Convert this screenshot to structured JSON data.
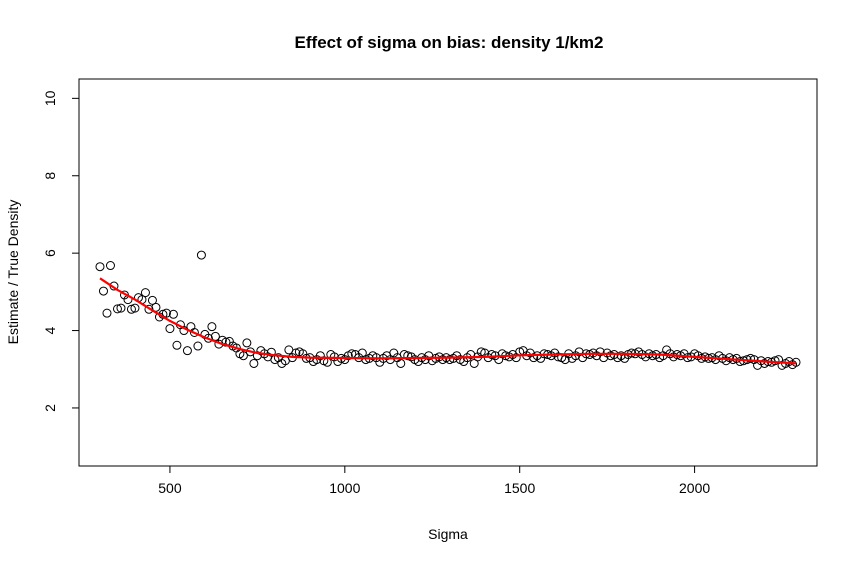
{
  "chart_data": {
    "type": "scatter",
    "title": "Effect of sigma on bias: density 1/km2",
    "xlabel": "Sigma",
    "ylabel": "Estimate / True Density",
    "xlim": [
      240,
      2350
    ],
    "ylim": [
      0.5,
      10.5
    ],
    "x_ticks": [
      500,
      1000,
      1500,
      2000
    ],
    "x_tick_labels": [
      "500",
      "1000",
      "1500",
      "2000"
    ],
    "y_ticks": [
      2,
      4,
      6,
      8,
      10
    ],
    "y_tick_labels": [
      "2",
      "4",
      "6",
      "8",
      "10"
    ],
    "grid": false,
    "legend": null,
    "colors": {
      "points": "#000000",
      "trend": "#ff0000"
    },
    "series": [
      {
        "kind": "points",
        "x": [
          300,
          310,
          320,
          330,
          340,
          350,
          360,
          370,
          380,
          390,
          400,
          410,
          420,
          430,
          440,
          450,
          460,
          470,
          480,
          490,
          500,
          510,
          520,
          530,
          540,
          550,
          560,
          570,
          580,
          590,
          600,
          610,
          620,
          630,
          640,
          650,
          660,
          670,
          680,
          690,
          700,
          710,
          720,
          730,
          740,
          750,
          760,
          770,
          780,
          790,
          800,
          810,
          820,
          830,
          840,
          850,
          860,
          870,
          880,
          890,
          900,
          910,
          920,
          930,
          940,
          950,
          960,
          970,
          980,
          990,
          1000,
          1010,
          1020,
          1030,
          1040,
          1050,
          1060,
          1070,
          1080,
          1090,
          1100,
          1110,
          1120,
          1130,
          1140,
          1150,
          1160,
          1170,
          1180,
          1190,
          1200,
          1210,
          1220,
          1230,
          1240,
          1250,
          1260,
          1270,
          1280,
          1290,
          1300,
          1310,
          1320,
          1330,
          1340,
          1350,
          1360,
          1370,
          1380,
          1390,
          1400,
          1410,
          1420,
          1430,
          1440,
          1450,
          1460,
          1470,
          1480,
          1490,
          1500,
          1510,
          1520,
          1530,
          1540,
          1550,
          1560,
          1570,
          1580,
          1590,
          1600,
          1610,
          1620,
          1630,
          1640,
          1650,
          1660,
          1670,
          1680,
          1690,
          1700,
          1710,
          1720,
          1730,
          1740,
          1750,
          1760,
          1770,
          1780,
          1790,
          1800,
          1810,
          1820,
          1830,
          1840,
          1850,
          1860,
          1870,
          1880,
          1890,
          1900,
          1910,
          1920,
          1930,
          1940,
          1950,
          1960,
          1970,
          1980,
          1990,
          2000,
          2010,
          2020,
          2030,
          2040,
          2050,
          2060,
          2070,
          2080,
          2090,
          2100,
          2110,
          2120,
          2130,
          2140,
          2150,
          2160,
          2170,
          2180,
          2190,
          2200,
          2210,
          2220,
          2230,
          2240,
          2250,
          2260,
          2270,
          2280,
          2290
        ],
        "y": [
          5.65,
          5.02,
          4.45,
          5.68,
          5.15,
          4.56,
          4.58,
          4.92,
          4.8,
          4.55,
          4.58,
          4.85,
          4.8,
          4.98,
          4.55,
          4.78,
          4.6,
          4.35,
          4.42,
          4.45,
          4.05,
          4.42,
          3.62,
          4.15,
          4.0,
          3.48,
          4.1,
          3.95,
          3.6,
          5.95,
          3.9,
          3.8,
          4.1,
          3.85,
          3.65,
          3.75,
          3.7,
          3.72,
          3.6,
          3.55,
          3.4,
          3.35,
          3.68,
          3.45,
          3.15,
          3.35,
          3.48,
          3.4,
          3.32,
          3.44,
          3.25,
          3.3,
          3.15,
          3.22,
          3.5,
          3.3,
          3.42,
          3.45,
          3.4,
          3.28,
          3.3,
          3.2,
          3.25,
          3.35,
          3.22,
          3.18,
          3.38,
          3.32,
          3.2,
          3.28,
          3.25,
          3.35,
          3.4,
          3.38,
          3.3,
          3.42,
          3.25,
          3.28,
          3.35,
          3.3,
          3.18,
          3.28,
          3.35,
          3.25,
          3.42,
          3.3,
          3.15,
          3.38,
          3.35,
          3.32,
          3.25,
          3.2,
          3.3,
          3.25,
          3.35,
          3.22,
          3.28,
          3.32,
          3.25,
          3.3,
          3.25,
          3.28,
          3.35,
          3.25,
          3.2,
          3.3,
          3.38,
          3.15,
          3.32,
          3.45,
          3.42,
          3.3,
          3.38,
          3.35,
          3.25,
          3.4,
          3.35,
          3.32,
          3.38,
          3.3,
          3.45,
          3.48,
          3.35,
          3.42,
          3.3,
          3.35,
          3.28,
          3.4,
          3.38,
          3.35,
          3.42,
          3.32,
          3.3,
          3.25,
          3.4,
          3.28,
          3.35,
          3.45,
          3.3,
          3.4,
          3.38,
          3.42,
          3.35,
          3.45,
          3.3,
          3.42,
          3.35,
          3.38,
          3.3,
          3.35,
          3.28,
          3.38,
          3.42,
          3.4,
          3.45,
          3.38,
          3.32,
          3.4,
          3.35,
          3.38,
          3.3,
          3.35,
          3.5,
          3.4,
          3.32,
          3.38,
          3.35,
          3.4,
          3.3,
          3.32,
          3.4,
          3.35,
          3.28,
          3.32,
          3.28,
          3.3,
          3.25,
          3.35,
          3.28,
          3.22,
          3.3,
          3.25,
          3.28,
          3.2,
          3.22,
          3.25,
          3.28,
          3.25,
          3.1,
          3.22,
          3.15,
          3.2,
          3.18,
          3.22,
          3.25,
          3.1,
          3.15,
          3.2,
          3.12,
          3.18
        ]
      },
      {
        "kind": "line",
        "x": [
          300,
          350,
          400,
          450,
          500,
          550,
          600,
          650,
          700,
          750,
          800,
          850,
          900,
          1000,
          1100,
          1200,
          1300,
          1400,
          1500,
          1600,
          1700,
          1800,
          1900,
          2000,
          2100,
          2200,
          2290
        ],
        "y": [
          5.35,
          5.05,
          4.8,
          4.52,
          4.25,
          4.02,
          3.82,
          3.65,
          3.52,
          3.42,
          3.36,
          3.32,
          3.3,
          3.29,
          3.28,
          3.29,
          3.3,
          3.32,
          3.36,
          3.38,
          3.4,
          3.4,
          3.38,
          3.32,
          3.26,
          3.2,
          3.15
        ]
      }
    ]
  }
}
